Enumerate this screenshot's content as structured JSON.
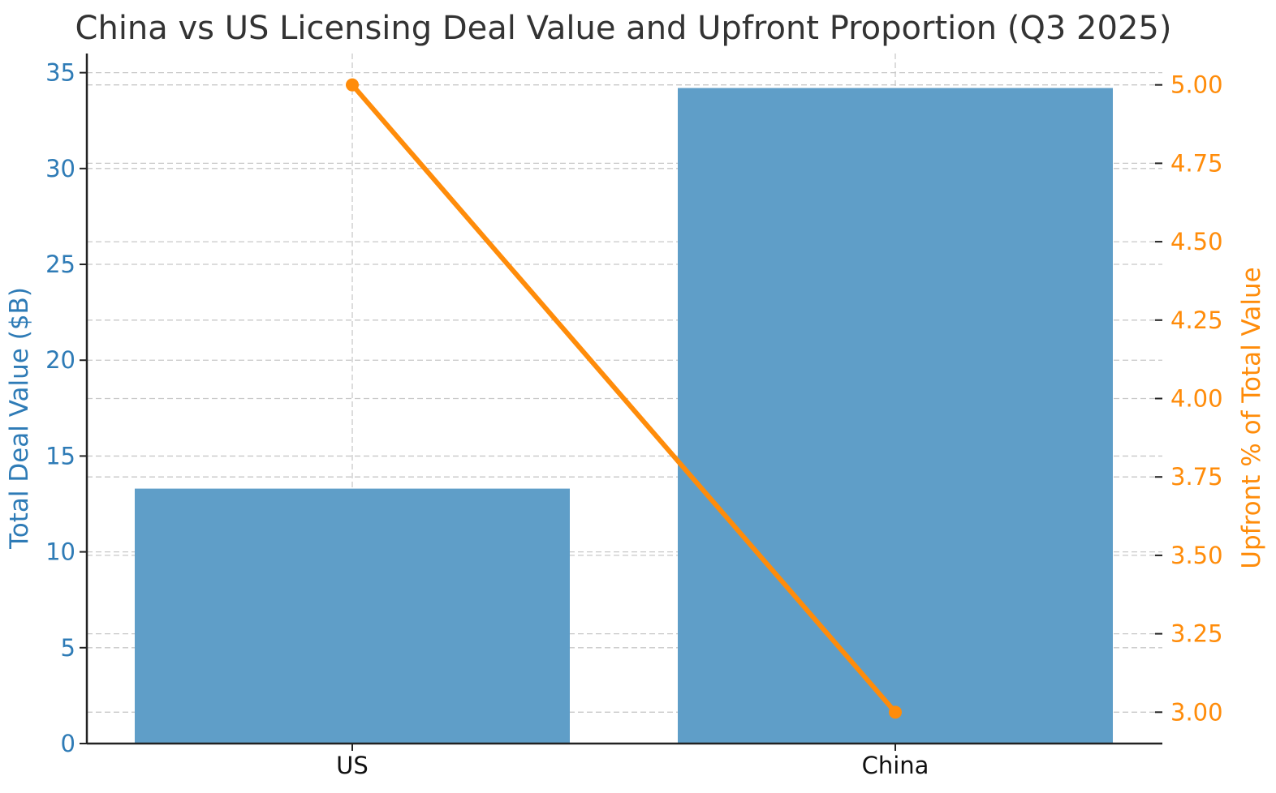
{
  "chart_data": {
    "type": "bar",
    "title": "China vs US Licensing Deal Value and Upfront Proportion (Q3 2025)",
    "categories": [
      "US",
      "China"
    ],
    "series": [
      {
        "name": "Total Deal Value ($B)",
        "type": "bar",
        "axis": "left",
        "values": [
          13.3,
          34.2
        ],
        "color": "#5f9ec8"
      },
      {
        "name": "Upfront % of Total Value",
        "type": "line",
        "axis": "right",
        "values": [
          5.0,
          3.0
        ],
        "color": "#ff8c0a"
      }
    ],
    "y_left": {
      "label": "Total Deal Value ($B)",
      "lim": [
        0,
        36
      ],
      "ticks": [
        0,
        5,
        10,
        15,
        20,
        25,
        30,
        35
      ],
      "tick_labels": [
        "0",
        "5",
        "10",
        "15",
        "20",
        "25",
        "30",
        "35"
      ],
      "color": "#2e7bb6"
    },
    "y_right": {
      "label": "Upfront % of Total Value",
      "lim": [
        2.9,
        5.1
      ],
      "ticks": [
        3.0,
        3.25,
        3.5,
        3.75,
        4.0,
        4.25,
        4.5,
        4.75,
        5.0
      ],
      "tick_labels": [
        "3.00",
        "3.25",
        "3.50",
        "3.75",
        "4.00",
        "4.25",
        "4.50",
        "4.75",
        "5.00"
      ],
      "color": "#ff8c0a"
    },
    "grid": true,
    "legend": "none"
  }
}
